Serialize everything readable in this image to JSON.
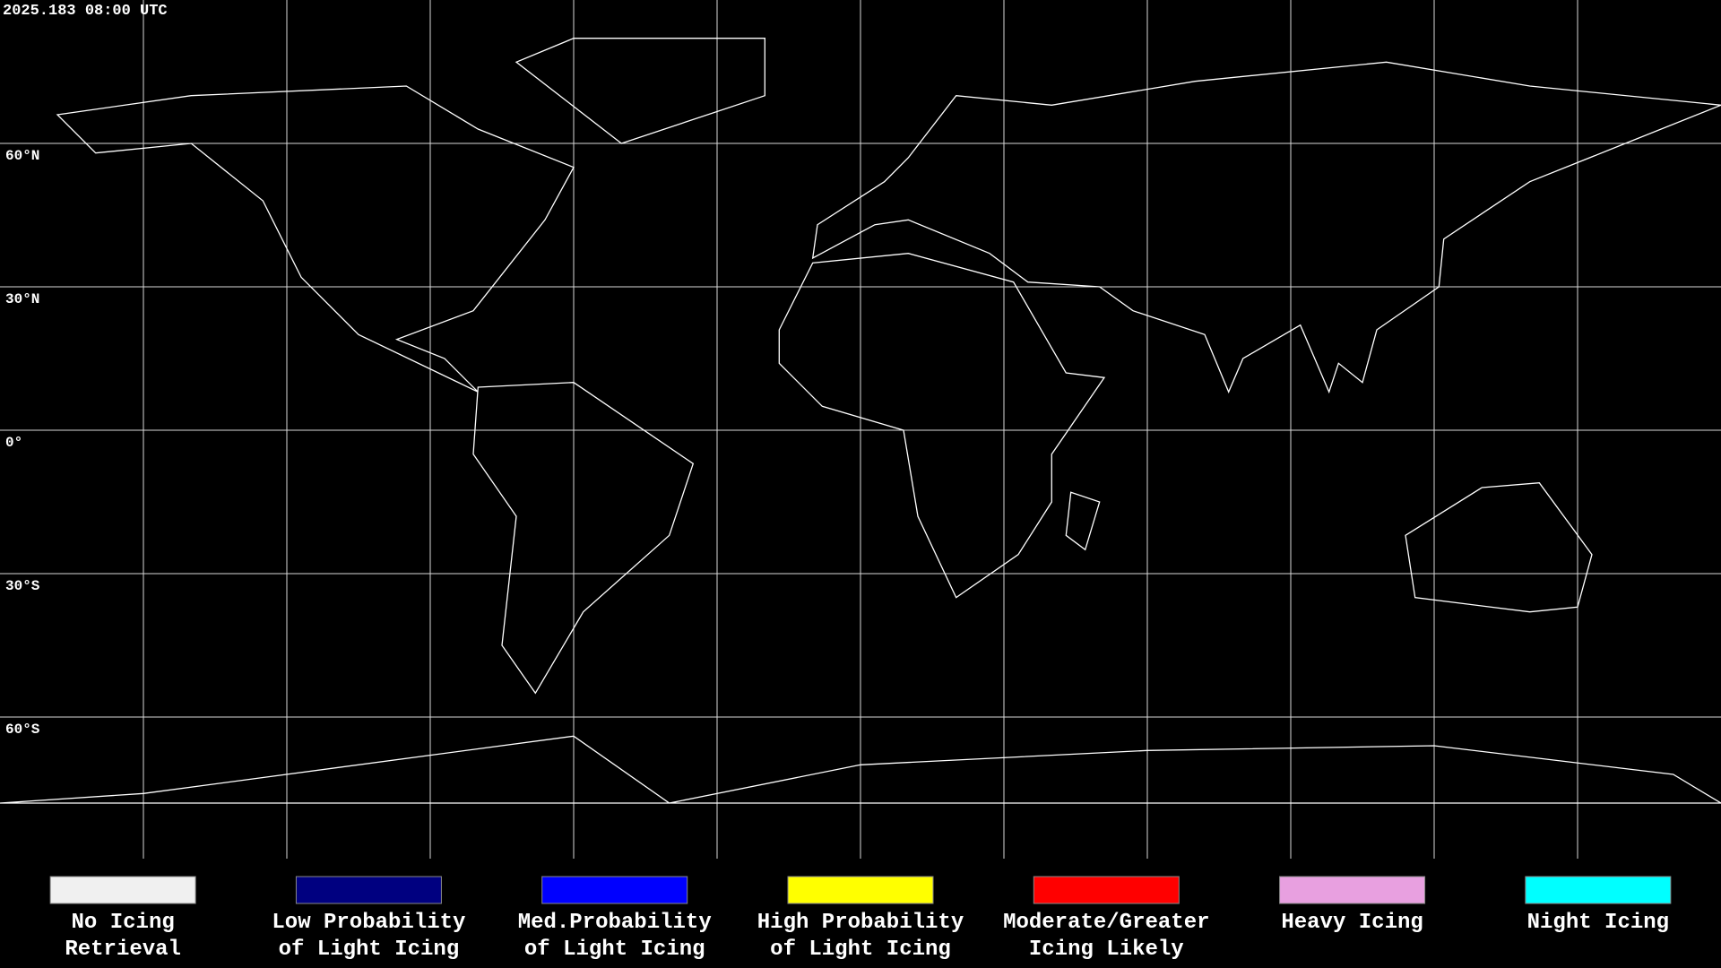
{
  "header": {
    "title": "2025.183 08:00 UTC"
  },
  "latitude_labels": [
    "60°N",
    "30°N",
    "0°",
    "30°S",
    "60°S"
  ],
  "legend": [
    {
      "lines": [
        "No Icing",
        "Retrieval"
      ],
      "color": "#f0f0f0"
    },
    {
      "lines": [
        "Low Probability",
        "of Light Icing"
      ],
      "color": "#000080"
    },
    {
      "lines": [
        "Med.Probability",
        "of Light Icing"
      ],
      "color": "#0000ff"
    },
    {
      "lines": [
        "High Probability",
        "of Light Icing"
      ],
      "color": "#ffff00"
    },
    {
      "lines": [
        "Moderate/Greater",
        "Icing Likely"
      ],
      "color": "#ff0000"
    },
    {
      "lines": [
        "Heavy Icing"
      ],
      "color": "#e8a0e0"
    },
    {
      "lines": [
        "Night Icing"
      ],
      "color": "#00ffff"
    }
  ]
}
